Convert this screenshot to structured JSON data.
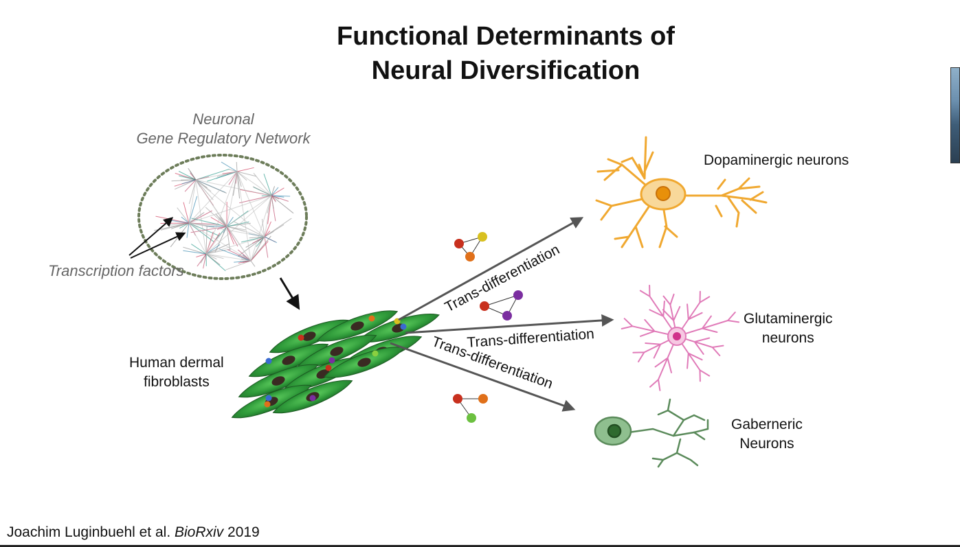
{
  "slide": {
    "title_line1": "Functional Determinants of",
    "title_line2": "Neural Diversification",
    "network_label_line1": "Neuronal",
    "network_label_line2": "Gene Regulatory Network",
    "transcription_factors_label": "Transcription factors",
    "fibroblast_label_line1": "Human dermal",
    "fibroblast_label_line2": "fibroblasts",
    "arrow_label_top": "Trans-differentiation",
    "arrow_label_middle": "Trans-differentiation",
    "arrow_label_bottom": "Trans-differentiation",
    "neuron_dopaminergic": "Dopaminergic neurons",
    "neuron_glutaminergic_line1": "Glutaminergic",
    "neuron_glutaminergic_line2": "neurons",
    "neuron_gaberneric_line1": "Gaberneric",
    "neuron_gaberneric_line2": "Neurons",
    "citation_authors": "Joachim Luginbuehl et al. ",
    "citation_journal": "BioRxiv",
    "citation_year": " 2019"
  },
  "colors": {
    "dopaminergic": "#f0a830",
    "glutaminergic": "#e07ab8",
    "gaberneric": "#5a9a5a",
    "fibroblast": "#2e8a3c",
    "arrow": "#555555",
    "network_ring": "#6d7d5a"
  }
}
